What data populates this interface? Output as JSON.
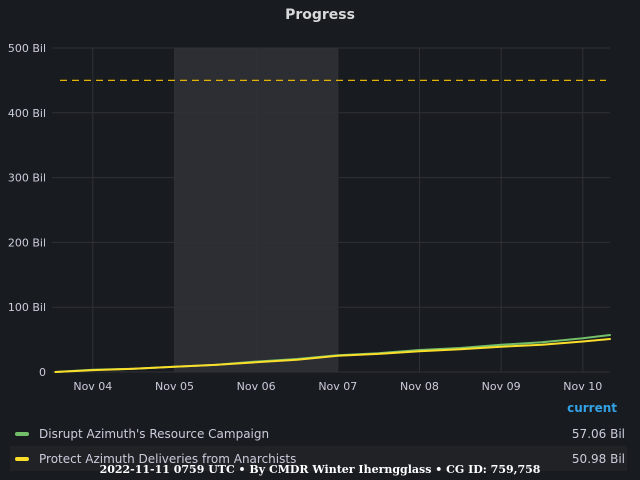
{
  "panel": {
    "title": "Progress"
  },
  "legend": {
    "header": "current",
    "items": [
      {
        "name": "Disrupt Azimuth's Resource Campaign",
        "value": "57.06 Bil",
        "color": "#73bf69"
      },
      {
        "name": "Protect Azimuth Deliveries from Anarchists",
        "value": "50.98 Bil",
        "color": "#fade2a"
      }
    ]
  },
  "footer": "2022-11-11 0759 UTC • By CMDR Winter Iherngglass • CG ID: 759,758",
  "chart_data": {
    "type": "line",
    "title": "Progress",
    "xlabel": "",
    "ylabel": "",
    "x_ticks": [
      "Nov 04",
      "Nov 05",
      "Nov 06",
      "Nov 07",
      "Nov 08",
      "Nov 09",
      "Nov 10"
    ],
    "y_ticks": [
      "0",
      "100 Bil",
      "200 Bil",
      "300 Bil",
      "400 Bil",
      "500 Bil"
    ],
    "ylim": [
      0,
      500
    ],
    "xlim": [
      "2022-11-03T12:00",
      "2022-11-10T08:00"
    ],
    "grid": true,
    "highlight_region": {
      "start": "2022-11-05T00:00",
      "end": "2022-11-07T00:00"
    },
    "threshold": {
      "value": 450,
      "color": "#e0b400",
      "style": "dashed"
    },
    "series": [
      {
        "name": "Disrupt Azimuth's Resource Campaign",
        "color": "#73bf69",
        "points": [
          [
            "2022-11-03T13:00",
            0
          ],
          [
            "2022-11-03T19:00",
            2
          ],
          [
            "2022-11-04T00:00",
            3.5
          ],
          [
            "2022-11-04T12:00",
            5
          ],
          [
            "2022-11-05T00:00",
            8
          ],
          [
            "2022-11-05T12:00",
            11
          ],
          [
            "2022-11-06T00:00",
            16
          ],
          [
            "2022-11-06T12:00",
            20
          ],
          [
            "2022-11-07T00:00",
            26
          ],
          [
            "2022-11-07T12:00",
            29
          ],
          [
            "2022-11-08T00:00",
            34
          ],
          [
            "2022-11-08T12:00",
            37
          ],
          [
            "2022-11-09T00:00",
            42
          ],
          [
            "2022-11-09T12:00",
            46
          ],
          [
            "2022-11-10T00:00",
            52
          ],
          [
            "2022-11-10T08:00",
            57.06
          ]
        ]
      },
      {
        "name": "Protect Azimuth Deliveries from Anarchists",
        "color": "#fade2a",
        "points": [
          [
            "2022-11-03T13:00",
            0
          ],
          [
            "2022-11-03T19:00",
            1.5
          ],
          [
            "2022-11-04T00:00",
            3
          ],
          [
            "2022-11-04T12:00",
            5
          ],
          [
            "2022-11-05T00:00",
            8
          ],
          [
            "2022-11-05T12:00",
            11
          ],
          [
            "2022-11-06T00:00",
            15
          ],
          [
            "2022-11-06T12:00",
            19
          ],
          [
            "2022-11-07T00:00",
            25
          ],
          [
            "2022-11-07T12:00",
            28
          ],
          [
            "2022-11-08T00:00",
            32
          ],
          [
            "2022-11-08T12:00",
            35
          ],
          [
            "2022-11-09T00:00",
            39
          ],
          [
            "2022-11-09T12:00",
            42
          ],
          [
            "2022-11-10T00:00",
            47
          ],
          [
            "2022-11-10T08:00",
            50.98
          ]
        ]
      }
    ]
  }
}
